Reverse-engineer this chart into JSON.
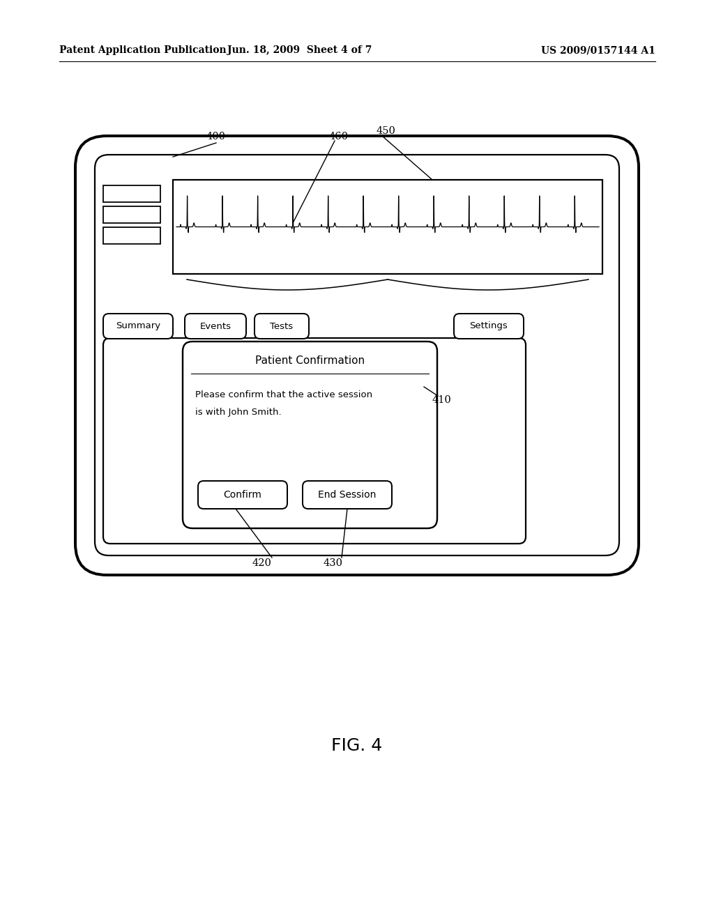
{
  "bg_color": "#ffffff",
  "header_left": "Patent Application Publication",
  "header_mid": "Jun. 18, 2009  Sheet 4 of 7",
  "header_right": "US 2009/0157144 A1",
  "fig_label": "FIG. 4",
  "lw": 1.6
}
